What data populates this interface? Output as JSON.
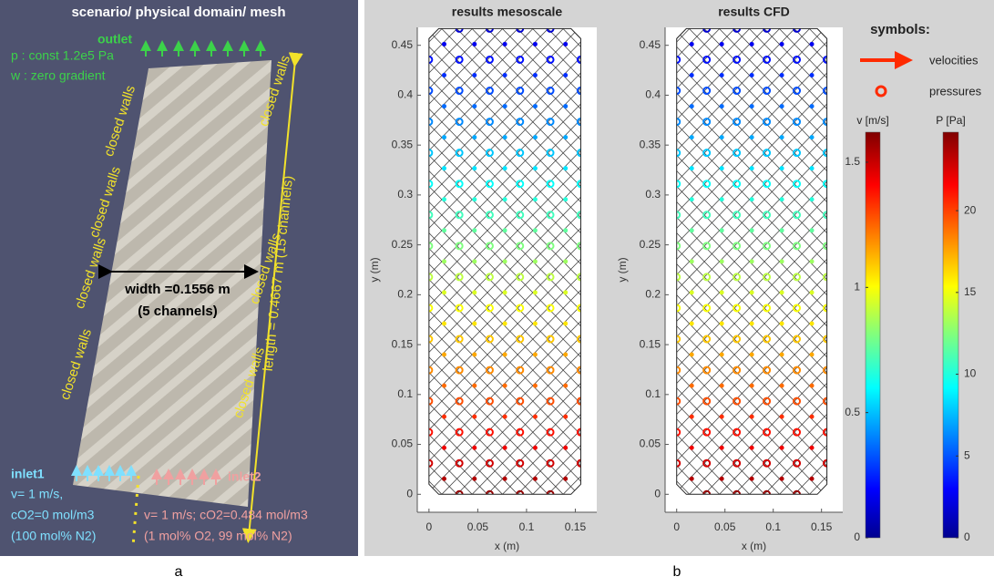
{
  "panel_a": {
    "title": "scenario/ physical domain/ mesh",
    "outlet": {
      "label": "outlet",
      "pressure": "p : const 1.2e5 Pa",
      "gradient": "w : zero gradient"
    },
    "walls": [
      "closed walls",
      "closed walls",
      "closed walls",
      "closed walls",
      "closed walls",
      "closed walls",
      "closed walls"
    ],
    "width": {
      "label": "width =0.1556 m",
      "channels": "(5 channels)"
    },
    "length": "length = 0.4667 m (15 channels)",
    "inlet1": {
      "label": "inlet1",
      "lines": [
        "v= 1 m/s,",
        "cO2=0 mol/m3",
        "(100 mol% N2)"
      ]
    },
    "inlet2": {
      "label": "inlet2",
      "lines": [
        "v= 1 m/s; cO2=0.484 mol/m3",
        "(1 mol% O2, 99 mol% N2)"
      ]
    }
  },
  "panel_b": {
    "plots": [
      {
        "title": "results mesoscale",
        "xlabel": "x (m)",
        "ylabel": "y (m)",
        "xlim": [
          -0.012,
          0.172
        ],
        "ylim": [
          -0.018,
          0.468
        ],
        "xticks": [
          0,
          0.05,
          0.1,
          0.15
        ],
        "yticks": [
          0,
          0.05,
          0.1,
          0.15,
          0.2,
          0.25,
          0.3,
          0.35,
          0.4,
          0.45
        ]
      },
      {
        "title": "results CFD",
        "xlabel": "x (m)",
        "ylabel": "y (m)",
        "xlim": [
          -0.012,
          0.172
        ],
        "ylim": [
          -0.018,
          0.468
        ],
        "xticks": [
          0,
          0.05,
          0.1,
          0.15
        ],
        "yticks": [
          0,
          0.05,
          0.1,
          0.15,
          0.2,
          0.25,
          0.3,
          0.35,
          0.4,
          0.45
        ]
      }
    ],
    "legend": {
      "title": "symbols:",
      "velocities": "velocities",
      "pressures": "pressures"
    },
    "colorbars": [
      {
        "label": "v [m/s]",
        "lim": [
          0,
          1.62
        ],
        "ticks": [
          0,
          0.5,
          1,
          1.5
        ]
      },
      {
        "label": "P [Pa]",
        "lim": [
          0,
          24.8
        ],
        "ticks": [
          0,
          5,
          10,
          15,
          20
        ]
      }
    ]
  },
  "panel_labels": [
    "a",
    "b"
  ]
}
